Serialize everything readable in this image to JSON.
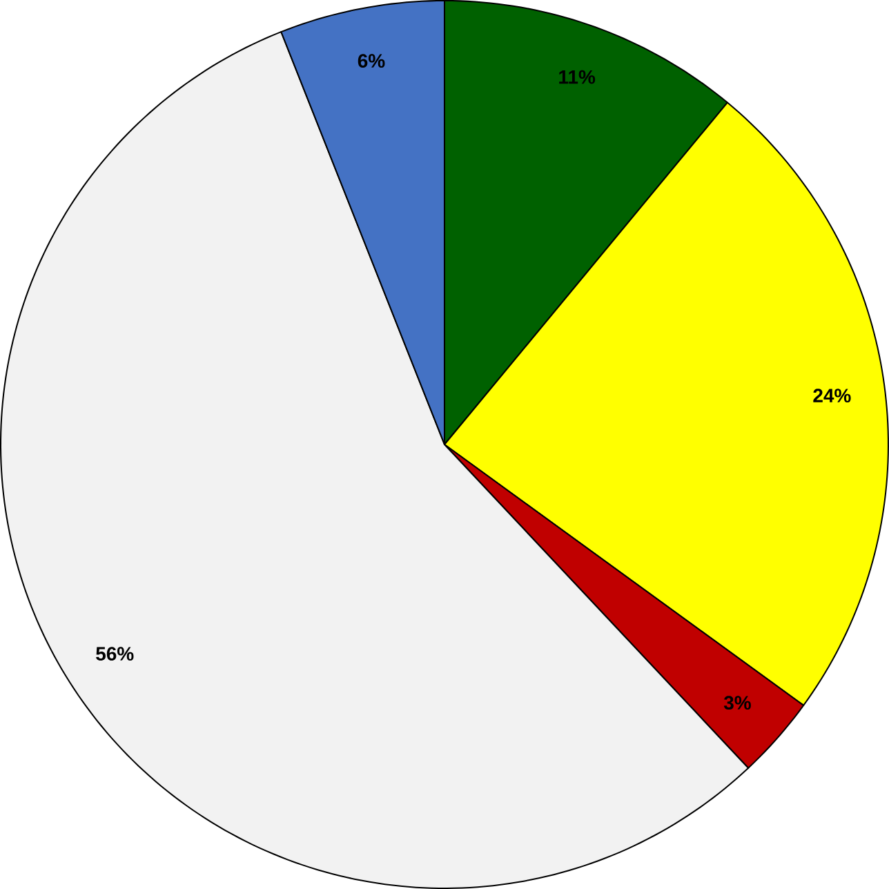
{
  "chart_data": {
    "type": "pie",
    "categories": [
      null,
      null,
      null,
      null,
      null
    ],
    "values": [
      11,
      24,
      3,
      56,
      6
    ],
    "colors": [
      "#006100",
      "#ffff00",
      "#c00000",
      "#f2f2f2",
      "#4472c4"
    ],
    "value_labels": [
      "11%",
      "24%",
      "3%",
      "56%",
      "6%"
    ]
  }
}
